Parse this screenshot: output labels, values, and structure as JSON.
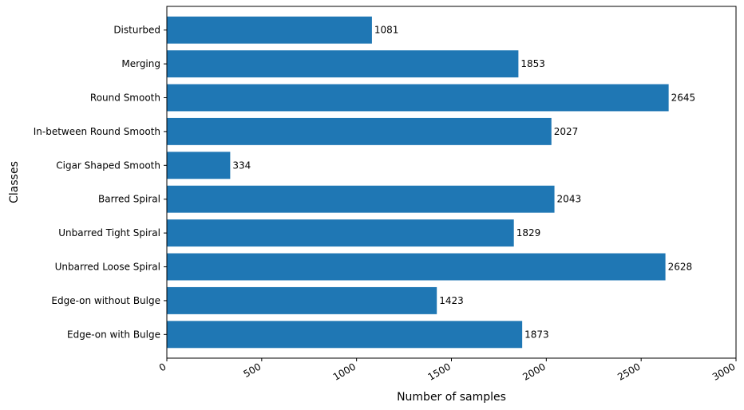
{
  "chart_data": {
    "type": "bar",
    "orientation": "horizontal",
    "categories": [
      "Disturbed",
      "Merging",
      "Round Smooth",
      "In-between Round Smooth",
      "Cigar Shaped Smooth",
      "Barred Spiral",
      "Unbarred Tight Spiral",
      "Unbarred Loose Spiral",
      "Edge-on without Bulge",
      "Edge-on with Bulge"
    ],
    "values": [
      1081,
      1853,
      2645,
      2027,
      334,
      2043,
      1829,
      2628,
      1423,
      1873
    ],
    "data_labels": [
      "1081",
      "1853",
      "2645",
      "2027",
      "334",
      "2043",
      "1829",
      "2628",
      "1423",
      "1873"
    ],
    "xlabel": "Number of samples",
    "ylabel": "Classes",
    "xlim": [
      0,
      3000
    ],
    "xticks": [
      0,
      500,
      1000,
      1500,
      2000,
      2500,
      3000
    ],
    "xtick_labels": [
      "0",
      "500",
      "1000",
      "1500",
      "2000",
      "2500",
      "3000"
    ],
    "xtick_rotation": "-30deg",
    "grid": false,
    "bar_color": "#1f77b4"
  }
}
